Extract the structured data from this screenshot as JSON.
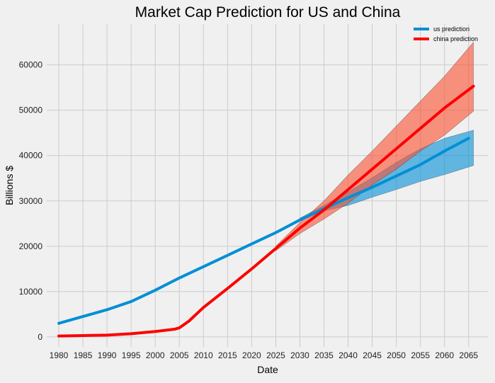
{
  "chart_data": {
    "type": "line",
    "title": "Market Cap Prediction for US and China",
    "xlabel": "Date",
    "ylabel": "Billions $",
    "xlim": [
      1977.5,
      2069
    ],
    "ylim": [
      -2200,
      69000
    ],
    "grid": true,
    "legend_position": "top-right",
    "x_ticks": [
      "1980",
      "1985",
      "1990",
      "1995",
      "2000",
      "2005",
      "2010",
      "2015",
      "2020",
      "2025",
      "2030",
      "2035",
      "2040",
      "2045",
      "2050",
      "2055",
      "2060",
      "2065"
    ],
    "y_ticks": [
      "0",
      "10000",
      "20000",
      "30000",
      "40000",
      "50000",
      "60000"
    ],
    "series": [
      {
        "name": "us prediction",
        "color": "#008fd5",
        "band_color": "#008fd5",
        "points": [
          [
            1980,
            3000
          ],
          [
            1985,
            4500
          ],
          [
            1990,
            6000
          ],
          [
            1995,
            7800
          ],
          [
            2000,
            10300
          ],
          [
            2005,
            13000
          ],
          [
            2010,
            15500
          ],
          [
            2015,
            18000
          ],
          [
            2020,
            20500
          ],
          [
            2025,
            23000
          ],
          [
            2030,
            25800
          ],
          [
            2035,
            28300
          ],
          [
            2040,
            30700
          ],
          [
            2045,
            33000
          ],
          [
            2050,
            35500
          ],
          [
            2055,
            38000
          ],
          [
            2060,
            41000
          ],
          [
            2065,
            43800
          ]
        ],
        "band_lower": [
          [
            2030,
            25600
          ],
          [
            2035,
            27800
          ],
          [
            2040,
            29000
          ],
          [
            2045,
            30800
          ],
          [
            2050,
            32500
          ],
          [
            2055,
            34300
          ],
          [
            2060,
            35800
          ],
          [
            2066,
            37800
          ]
        ],
        "band_upper": [
          [
            2030,
            26200
          ],
          [
            2035,
            29000
          ],
          [
            2040,
            32000
          ],
          [
            2045,
            35100
          ],
          [
            2050,
            38500
          ],
          [
            2055,
            41500
          ],
          [
            2060,
            43800
          ],
          [
            2066,
            45600
          ]
        ]
      },
      {
        "name": "china prediction",
        "color": "#fc0000",
        "band_color": "#fc4f30",
        "points": [
          [
            1980,
            200
          ],
          [
            1985,
            300
          ],
          [
            1990,
            400
          ],
          [
            1995,
            700
          ],
          [
            2000,
            1200
          ],
          [
            2004,
            1700
          ],
          [
            2005,
            2000
          ],
          [
            2007,
            3500
          ],
          [
            2010,
            6500
          ],
          [
            2015,
            10700
          ],
          [
            2020,
            15000
          ],
          [
            2025,
            19500
          ],
          [
            2030,
            24000
          ],
          [
            2035,
            28000
          ],
          [
            2040,
            32500
          ],
          [
            2045,
            37000
          ],
          [
            2050,
            41500
          ],
          [
            2055,
            46000
          ],
          [
            2060,
            50500
          ],
          [
            2066,
            55300
          ]
        ],
        "band_lower": [
          [
            2025,
            19000
          ],
          [
            2030,
            22800
          ],
          [
            2035,
            26000
          ],
          [
            2040,
            29500
          ],
          [
            2045,
            33500
          ],
          [
            2050,
            37000
          ],
          [
            2055,
            41000
          ],
          [
            2060,
            44500
          ],
          [
            2066,
            49800
          ]
        ],
        "band_upper": [
          [
            2025,
            20000
          ],
          [
            2030,
            25200
          ],
          [
            2035,
            30000
          ],
          [
            2040,
            35700
          ],
          [
            2045,
            41000
          ],
          [
            2050,
            46500
          ],
          [
            2055,
            52000
          ],
          [
            2060,
            57500
          ],
          [
            2066,
            65000
          ]
        ]
      }
    ]
  }
}
